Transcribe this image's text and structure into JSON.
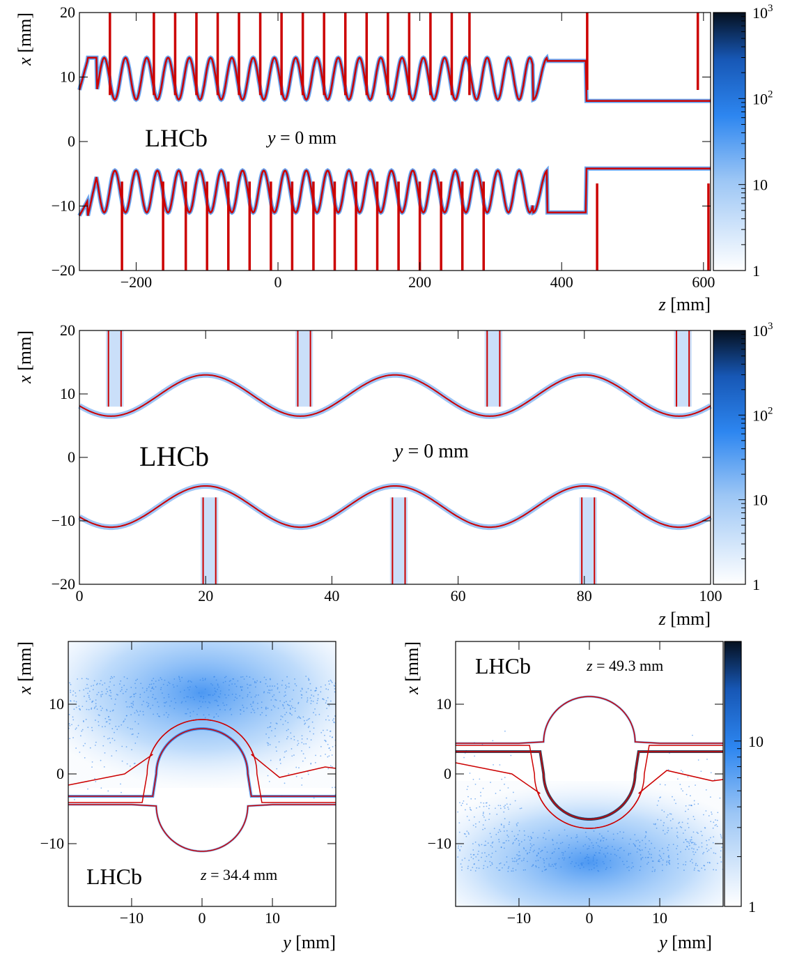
{
  "chart_data": [
    {
      "type": "heatmap",
      "panel": "top",
      "xlabel_var": "z",
      "xlabel_unit": "[mm]",
      "ylabel_var": "x",
      "ylabel_unit": "[mm]",
      "xlim": [
        -280,
        610
      ],
      "ylim": [
        -20,
        20
      ],
      "xticks": [
        -200,
        0,
        200,
        400,
        600
      ],
      "yticks": [
        -20,
        -10,
        0,
        10,
        20
      ],
      "annotation_brand": "LHCb",
      "annotation_var": "y",
      "annotation_text": " = 0 mm",
      "colorbar": {
        "scale": "log",
        "range": [
          1,
          1000
        ],
        "ticks": [
          "1",
          "10",
          "10²",
          "10³"
        ]
      },
      "series": [
        {
          "name": "",
          "kind": "upper-foil-corrugation",
          "x": [
            -280,
            -265,
            -250,
            420,
            440
          ],
          "y": [
            7,
            13,
            12.5,
            12.5,
            6
          ]
        },
        {
          "name": "",
          "kind": "lower-foil-corrugation",
          "x": [
            -280,
            -265,
            -250,
            420,
            440
          ],
          "y": [
            -11.5,
            -5,
            -5,
            -11,
            -4.5
          ]
        }
      ],
      "modules_upper_z": [
        -237,
        -175,
        -145,
        -115,
        -85,
        -55,
        -25,
        5,
        35,
        65,
        95,
        125,
        155,
        185,
        215,
        245,
        270,
        436,
        592
      ],
      "modules_lower_z": [
        -220,
        -162,
        -130,
        -100,
        -70,
        -40,
        -10,
        20,
        50,
        80,
        110,
        140,
        170,
        200,
        230,
        260,
        290,
        450,
        607
      ]
    },
    {
      "type": "heatmap",
      "panel": "middle",
      "xlabel_var": "z",
      "xlabel_unit": "[mm]",
      "ylabel_var": "x",
      "ylabel_unit": "[mm]",
      "xlim": [
        0,
        100
      ],
      "ylim": [
        -20,
        20
      ],
      "xticks": [
        0,
        20,
        40,
        60,
        80,
        100
      ],
      "yticks": [
        -20,
        -10,
        0,
        10,
        20
      ],
      "annotation_brand": "LHCb",
      "annotation_var": "y",
      "annotation_text": " = 0 mm",
      "colorbar": {
        "scale": "log",
        "range": [
          1,
          1000
        ],
        "ticks": [
          "1",
          "10",
          "10²",
          "10³"
        ]
      },
      "series": [
        {
          "name": "",
          "kind": "upper-foil",
          "period": 30,
          "max_z": [
            20,
            50,
            80
          ],
          "x_max": 13,
          "x_min": 6.5
        },
        {
          "name": "",
          "kind": "lower-foil",
          "period": 30,
          "max_z": [
            20,
            50,
            80
          ],
          "x_max": -4.5,
          "x_min": -11
        }
      ],
      "modules_upper_z": [
        4.6,
        34.6,
        64.6,
        94.6
      ],
      "modules_lower_z": [
        19.6,
        49.6,
        79.6
      ]
    },
    {
      "type": "heatmap",
      "panel": "bottom-left",
      "xlabel_var": "y",
      "xlabel_unit": "[mm]",
      "ylabel_var": "x",
      "ylabel_unit": "[mm]",
      "xlim": [
        -19,
        19
      ],
      "ylim": [
        -19,
        19
      ],
      "xticks": [
        -10,
        0,
        10
      ],
      "yticks": [
        -10,
        0,
        10
      ],
      "annotation_brand": "LHCb",
      "annotation_var": "z",
      "annotation_text": " = 34.4 mm"
    },
    {
      "type": "heatmap",
      "panel": "bottom-right",
      "xlabel_var": "y",
      "xlabel_unit": "[mm]",
      "ylabel_var": "x",
      "ylabel_unit": "[mm]",
      "xlim": [
        -19,
        19
      ],
      "ylim": [
        -19,
        19
      ],
      "xticks": [
        -10,
        0,
        10
      ],
      "yticks": [
        -10,
        0,
        10
      ],
      "annotation_brand": "LHCb",
      "annotation_var": "z",
      "annotation_text": " = 49.3 mm",
      "colorbar": {
        "scale": "log",
        "range": [
          1,
          40
        ],
        "ticks": [
          "1",
          "10"
        ]
      }
    }
  ],
  "colors": {
    "model": "#cc0000",
    "hits": "#2a7ee8",
    "hits_dark": "#0a1a3a"
  }
}
